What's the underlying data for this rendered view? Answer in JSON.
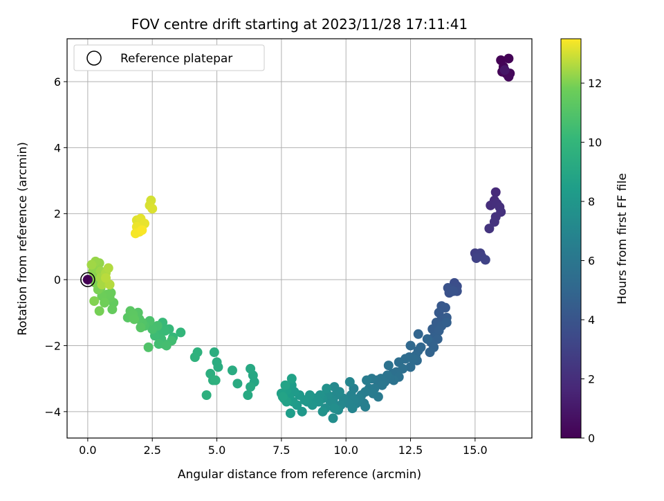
{
  "chart_data": {
    "type": "scatter",
    "title": "FOV centre drift starting at 2023/11/28 17:11:41",
    "xlabel": "Angular distance from reference (arcmin)",
    "ylabel": "Rotation from reference (arcmin)",
    "colorbar_label": "Hours from first FF file",
    "xlim": [
      -0.8,
      17.2
    ],
    "ylim": [
      -4.8,
      7.3
    ],
    "clim": [
      0,
      13.5
    ],
    "colormap": "viridis",
    "grid": true,
    "legend_placement": "top-left",
    "xticks": [
      0.0,
      2.5,
      5.0,
      7.5,
      10.0,
      12.5,
      15.0
    ],
    "xtick_labels": [
      "0.0",
      "2.5",
      "5.0",
      "7.5",
      "10.0",
      "12.5",
      "15.0"
    ],
    "yticks": [
      -4,
      -2,
      0,
      2,
      4,
      6
    ],
    "ytick_labels": [
      "−4",
      "−2",
      "0",
      "2",
      "4",
      "6"
    ],
    "cticks": [
      0,
      2,
      4,
      6,
      8,
      10,
      12
    ],
    "ctick_labels": [
      "0",
      "2",
      "4",
      "6",
      "8",
      "10",
      "12"
    ],
    "reference": {
      "label": "Reference platepar",
      "x": 0.0,
      "y": 0.0
    },
    "points": [
      [
        16.0,
        6.65,
        0.05
      ],
      [
        16.3,
        6.7,
        0.1
      ],
      [
        16.1,
        6.45,
        0.15
      ],
      [
        16.05,
        6.3,
        0.2
      ],
      [
        16.2,
        6.25,
        0.25
      ],
      [
        16.35,
        6.25,
        0.3
      ],
      [
        16.3,
        6.15,
        0.35
      ],
      [
        16.15,
        6.35,
        0.9
      ],
      [
        15.8,
        2.65,
        1.8
      ],
      [
        15.75,
        2.4,
        1.9
      ],
      [
        15.6,
        2.25,
        2.0
      ],
      [
        15.85,
        2.3,
        2.05
      ],
      [
        15.95,
        2.2,
        2.1
      ],
      [
        16.0,
        2.05,
        2.15
      ],
      [
        15.8,
        1.9,
        2.2
      ],
      [
        15.75,
        1.75,
        2.25
      ],
      [
        15.55,
        1.55,
        2.3
      ],
      [
        15.0,
        0.8,
        2.8
      ],
      [
        15.1,
        0.75,
        2.85
      ],
      [
        15.2,
        0.8,
        2.9
      ],
      [
        15.25,
        0.7,
        2.95
      ],
      [
        15.05,
        0.65,
        3.0
      ],
      [
        15.4,
        0.6,
        3.05
      ],
      [
        14.2,
        -0.1,
        3.6
      ],
      [
        14.3,
        -0.2,
        3.65
      ],
      [
        14.1,
        -0.25,
        3.7
      ],
      [
        14.3,
        -0.35,
        3.75
      ],
      [
        14.0,
        -0.4,
        3.8
      ],
      [
        13.95,
        -0.25,
        3.85
      ],
      [
        14.15,
        -0.35,
        3.9
      ],
      [
        13.7,
        -0.8,
        4.2
      ],
      [
        13.85,
        -0.85,
        4.25
      ],
      [
        13.6,
        -1.0,
        4.3
      ],
      [
        13.7,
        -1.2,
        4.35
      ],
      [
        13.9,
        -1.15,
        4.4
      ],
      [
        13.5,
        -1.3,
        4.45
      ],
      [
        13.35,
        -1.5,
        4.5
      ],
      [
        13.7,
        -1.4,
        4.55
      ],
      [
        13.6,
        -1.55,
        4.6
      ],
      [
        13.9,
        -1.3,
        4.62
      ],
      [
        13.4,
        -1.75,
        4.65
      ],
      [
        13.55,
        -1.8,
        4.7
      ],
      [
        13.3,
        -1.9,
        4.75
      ],
      [
        13.4,
        -2.05,
        4.8
      ],
      [
        13.25,
        -2.2,
        4.85
      ],
      [
        12.8,
        -1.65,
        4.9
      ],
      [
        13.15,
        -1.8,
        4.95
      ],
      [
        12.9,
        -2.05,
        5.0
      ],
      [
        12.8,
        -2.15,
        5.05
      ],
      [
        12.5,
        -2.0,
        5.1
      ],
      [
        12.7,
        -2.3,
        5.15
      ],
      [
        12.75,
        -2.45,
        5.2
      ],
      [
        12.45,
        -2.35,
        5.25
      ],
      [
        12.6,
        -2.4,
        5.3
      ],
      [
        12.5,
        -2.65,
        5.35
      ],
      [
        12.3,
        -2.4,
        5.4
      ],
      [
        12.05,
        -2.5,
        5.45
      ],
      [
        12.2,
        -2.7,
        5.5
      ],
      [
        11.95,
        -2.8,
        5.55
      ],
      [
        11.8,
        -2.85,
        5.6
      ],
      [
        12.05,
        -2.95,
        5.65
      ],
      [
        11.65,
        -2.6,
        5.7
      ],
      [
        11.85,
        -3.05,
        5.75
      ],
      [
        11.7,
        -3.0,
        5.8
      ],
      [
        11.6,
        -2.9,
        5.85
      ],
      [
        11.5,
        -3.1,
        5.9
      ],
      [
        11.35,
        -3.0,
        5.95
      ],
      [
        11.2,
        -3.05,
        6.0
      ],
      [
        11.4,
        -3.2,
        6.05
      ],
      [
        11.0,
        -3.0,
        6.1
      ],
      [
        11.1,
        -3.3,
        6.15
      ],
      [
        11.25,
        -3.55,
        6.2
      ],
      [
        10.9,
        -3.3,
        6.25
      ],
      [
        11.05,
        -3.45,
        6.3
      ],
      [
        10.8,
        -3.05,
        6.35
      ],
      [
        10.75,
        -3.4,
        6.4
      ],
      [
        10.6,
        -3.5,
        6.45
      ],
      [
        10.7,
        -3.75,
        6.5
      ],
      [
        10.75,
        -3.85,
        6.55
      ],
      [
        10.5,
        -3.6,
        6.6
      ],
      [
        10.3,
        -3.3,
        6.65
      ],
      [
        10.4,
        -3.75,
        6.7
      ],
      [
        10.2,
        -3.5,
        6.75
      ],
      [
        10.3,
        -3.65,
        6.8
      ],
      [
        10.1,
        -3.75,
        6.85
      ],
      [
        10.25,
        -3.9,
        6.9
      ],
      [
        10.15,
        -3.1,
        6.95
      ],
      [
        9.9,
        -3.6,
        7.0
      ],
      [
        9.8,
        -3.8,
        7.05
      ],
      [
        9.6,
        -3.5,
        7.1
      ],
      [
        9.55,
        -3.25,
        7.15
      ],
      [
        9.75,
        -3.4,
        7.2
      ],
      [
        9.5,
        -3.65,
        7.25
      ],
      [
        9.7,
        -3.95,
        7.3
      ],
      [
        9.4,
        -3.7,
        7.35
      ],
      [
        9.3,
        -3.5,
        7.4
      ],
      [
        9.5,
        -4.2,
        7.45
      ],
      [
        9.55,
        -3.9,
        7.5
      ],
      [
        9.2,
        -3.9,
        7.55
      ],
      [
        9.1,
        -3.6,
        7.6
      ],
      [
        9.25,
        -3.3,
        7.65
      ],
      [
        9.0,
        -3.5,
        7.7
      ],
      [
        8.95,
        -3.7,
        7.75
      ],
      [
        9.1,
        -4.0,
        7.8
      ],
      [
        8.8,
        -3.6,
        7.85
      ],
      [
        8.7,
        -3.8,
        7.9
      ],
      [
        8.5,
        -3.7,
        7.95
      ],
      [
        8.6,
        -3.5,
        8.0
      ],
      [
        8.4,
        -3.65,
        8.05
      ],
      [
        8.3,
        -4.0,
        8.1
      ],
      [
        8.2,
        -3.5,
        8.15
      ],
      [
        8.1,
        -3.8,
        8.2
      ],
      [
        8.0,
        -3.4,
        8.25
      ],
      [
        7.95,
        -3.7,
        8.3
      ],
      [
        7.9,
        -3.2,
        8.35
      ],
      [
        7.8,
        -3.55,
        8.4
      ],
      [
        7.85,
        -4.05,
        8.45
      ],
      [
        7.7,
        -3.35,
        8.5
      ],
      [
        7.6,
        -3.6,
        8.55
      ],
      [
        7.5,
        -3.45,
        8.6
      ],
      [
        7.7,
        -3.7,
        8.65
      ],
      [
        7.9,
        -3.0,
        8.7
      ],
      [
        7.65,
        -3.2,
        8.75
      ],
      [
        7.55,
        -3.55,
        8.8
      ],
      [
        6.45,
        -3.1,
        9.0
      ],
      [
        6.4,
        -2.9,
        9.05
      ],
      [
        6.3,
        -2.7,
        9.1
      ],
      [
        6.2,
        -3.5,
        9.15
      ],
      [
        6.3,
        -3.25,
        9.2
      ],
      [
        5.8,
        -3.15,
        9.25
      ],
      [
        5.6,
        -2.75,
        9.3
      ],
      [
        5.0,
        -2.5,
        9.35
      ],
      [
        5.05,
        -2.65,
        9.4
      ],
      [
        4.9,
        -2.2,
        9.45
      ],
      [
        4.75,
        -2.85,
        9.5
      ],
      [
        4.85,
        -3.05,
        9.55
      ],
      [
        4.6,
        -3.5,
        9.6
      ],
      [
        4.95,
        -3.05,
        9.65
      ],
      [
        4.25,
        -2.2,
        9.7
      ],
      [
        4.15,
        -2.35,
        9.75
      ],
      [
        3.6,
        -1.6,
        10.0
      ],
      [
        3.3,
        -1.75,
        10.1
      ],
      [
        3.15,
        -1.5,
        10.15
      ],
      [
        2.9,
        -1.3,
        10.2
      ],
      [
        3.0,
        -1.55,
        10.25
      ],
      [
        2.75,
        -1.6,
        10.3
      ],
      [
        2.85,
        -1.8,
        10.35
      ],
      [
        2.6,
        -1.7,
        10.4
      ],
      [
        2.95,
        -1.95,
        10.45
      ],
      [
        3.25,
        -1.85,
        10.5
      ],
      [
        2.75,
        -1.95,
        10.55
      ],
      [
        3.05,
        -2.0,
        10.6
      ],
      [
        2.7,
        -1.4,
        10.65
      ],
      [
        2.5,
        -1.5,
        10.7
      ],
      [
        2.4,
        -1.25,
        10.8
      ],
      [
        2.2,
        -1.4,
        10.9
      ],
      [
        2.35,
        -2.05,
        10.95
      ],
      [
        2.1,
        -1.3,
        11.0
      ],
      [
        2.0,
        -1.2,
        11.05
      ],
      [
        1.95,
        -1.0,
        11.1
      ],
      [
        2.05,
        -1.45,
        11.15
      ],
      [
        1.55,
        -1.15,
        11.2
      ],
      [
        1.65,
        -0.95,
        11.25
      ],
      [
        1.75,
        -1.05,
        11.3
      ],
      [
        1.8,
        -1.2,
        11.35
      ],
      [
        1.0,
        -0.7,
        11.5
      ],
      [
        0.95,
        -0.9,
        11.55
      ],
      [
        0.85,
        -0.55,
        11.6
      ],
      [
        0.9,
        -0.4,
        11.65
      ],
      [
        0.75,
        -0.45,
        11.7
      ],
      [
        0.55,
        -0.5,
        11.75
      ],
      [
        0.65,
        -0.7,
        11.8
      ],
      [
        0.5,
        -0.25,
        11.85
      ],
      [
        0.45,
        -0.95,
        11.9
      ],
      [
        0.4,
        -0.3,
        11.95
      ],
      [
        0.3,
        -0.1,
        12.0
      ],
      [
        0.25,
        -0.65,
        12.05
      ],
      [
        0.3,
        0.1,
        12.1
      ],
      [
        0.2,
        0.25,
        12.15
      ],
      [
        0.35,
        0.35,
        12.2
      ],
      [
        0.45,
        0.5,
        12.25
      ],
      [
        0.3,
        0.55,
        12.3
      ],
      [
        0.5,
        0.25,
        12.35
      ],
      [
        0.15,
        0.45,
        12.4
      ],
      [
        0.5,
        0.05,
        12.45
      ],
      [
        0.55,
        -0.15,
        12.5
      ],
      [
        0.7,
        0.2,
        12.55
      ],
      [
        0.8,
        0.35,
        12.6
      ],
      [
        0.85,
        -0.15,
        12.65
      ],
      [
        0.7,
        0.05,
        12.7
      ],
      [
        2.45,
        2.4,
        13.0
      ],
      [
        2.4,
        2.25,
        13.05
      ],
      [
        2.5,
        2.15,
        13.1
      ],
      [
        1.9,
        1.8,
        13.15
      ],
      [
        2.05,
        1.85,
        13.2
      ],
      [
        2.2,
        1.7,
        13.25
      ],
      [
        1.9,
        1.6,
        13.3
      ],
      [
        2.0,
        1.45,
        13.35
      ],
      [
        1.85,
        1.4,
        13.4
      ],
      [
        2.1,
        1.5,
        13.45
      ]
    ]
  }
}
